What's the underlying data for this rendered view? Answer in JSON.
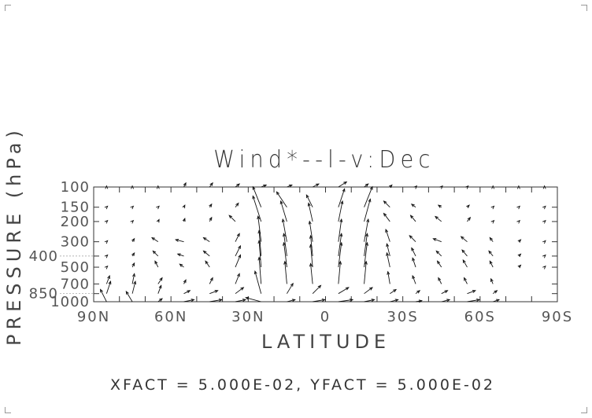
{
  "chart_data": {
    "type": "vector",
    "title": "Wind*--l-v:Dec",
    "xlabel": "LATITUDE",
    "ylabel": "PRESSURE (hPa)",
    "footer": "XFACT = 5.000E-02, YFACT = 5.000E-02",
    "x_axis": {
      "range": [
        90,
        -90
      ],
      "tick_labels": [
        "90N",
        "60N",
        "30N",
        "0",
        "30S",
        "60S",
        "90S"
      ],
      "tick_values": [
        90,
        60,
        30,
        0,
        -30,
        -60,
        -90
      ],
      "minor_step": 10
    },
    "y_axis": {
      "scale": "log",
      "range": [
        1000,
        100
      ],
      "reversed": true,
      "tick_labels": [
        "100",
        "150",
        "200",
        "300",
        "400",
        "500",
        "700",
        "850",
        "1000"
      ],
      "tick_values": [
        100,
        150,
        200,
        300,
        400,
        500,
        700,
        850,
        1000
      ]
    },
    "latitudes": [
      85,
      75,
      65,
      55,
      45,
      35,
      25,
      15,
      5,
      -5,
      -15,
      -25,
      -35,
      -45,
      -55,
      -65,
      -75,
      -85
    ],
    "levels": [
      100,
      150,
      200,
      300,
      400,
      500,
      700,
      850,
      1000
    ],
    "u": [
      [
        0,
        0,
        0,
        2,
        3,
        4,
        5,
        5,
        6,
        8,
        4,
        2,
        1,
        1,
        1,
        0,
        0,
        0
      ],
      [
        1,
        1,
        1,
        1,
        2,
        3,
        -8,
        -10,
        -6,
        6,
        8,
        -6,
        -4,
        -3,
        2,
        1,
        1,
        1
      ],
      [
        1,
        1,
        1,
        1,
        2,
        -6,
        -8,
        -6,
        -4,
        4,
        6,
        -6,
        -5,
        -6,
        3,
        1,
        1,
        1
      ],
      [
        1,
        2,
        -6,
        -8,
        -6,
        4,
        -3,
        -4,
        -3,
        3,
        4,
        -4,
        -6,
        -8,
        -6,
        -3,
        2,
        1
      ],
      [
        1,
        2,
        -5,
        -6,
        -6,
        5,
        -2,
        -3,
        -2,
        3,
        3,
        -3,
        -4,
        -5,
        -5,
        -4,
        2,
        1
      ],
      [
        1,
        2,
        -3,
        -4,
        -4,
        5,
        -2,
        -3,
        -2,
        3,
        3,
        -3,
        -3,
        -4,
        -4,
        -3,
        2,
        1
      ],
      [
        3,
        2,
        4,
        2,
        3,
        4,
        -2,
        -2,
        -2,
        2,
        2,
        -2,
        -3,
        -3,
        -3,
        -2,
        null,
        null
      ],
      [
        4,
        3,
        3,
        6,
        8,
        8,
        -6,
        6,
        8,
        10,
        8,
        6,
        4,
        6,
        8,
        4,
        null,
        null
      ],
      [
        -6,
        -6,
        4,
        10,
        12,
        10,
        -15,
        8,
        12,
        14,
        10,
        8,
        6,
        8,
        12,
        6,
        null,
        null
      ]
    ],
    "v": [
      [
        1,
        1,
        1,
        4,
        4,
        3,
        2,
        2,
        3,
        5,
        3,
        2,
        1,
        1,
        1,
        1,
        1,
        1
      ],
      [
        1,
        1,
        1,
        2,
        3,
        4,
        20,
        15,
        12,
        18,
        20,
        6,
        3,
        2,
        2,
        1,
        1,
        1
      ],
      [
        1,
        1,
        2,
        3,
        4,
        6,
        25,
        20,
        18,
        20,
        22,
        8,
        6,
        5,
        4,
        1,
        1,
        1
      ],
      [
        1,
        3,
        4,
        2,
        4,
        8,
        25,
        22,
        20,
        22,
        22,
        12,
        6,
        3,
        5,
        4,
        2,
        1
      ],
      [
        1,
        3,
        5,
        2,
        5,
        10,
        25,
        22,
        20,
        22,
        22,
        12,
        8,
        5,
        6,
        5,
        2,
        1
      ],
      [
        1,
        4,
        6,
        3,
        6,
        12,
        26,
        24,
        22,
        24,
        24,
        14,
        9,
        6,
        7,
        6,
        2,
        1
      ],
      [
        8,
        10,
        6,
        4,
        6,
        10,
        26,
        22,
        20,
        22,
        22,
        12,
        8,
        6,
        6,
        5,
        null,
        null
      ],
      [
        12,
        12,
        8,
        3,
        3,
        6,
        22,
        10,
        8,
        6,
        6,
        4,
        3,
        3,
        3,
        3,
        null,
        null
      ],
      [
        12,
        10,
        3,
        2,
        2,
        2,
        4,
        2,
        2,
        2,
        2,
        2,
        1,
        2,
        2,
        2,
        null,
        null
      ]
    ]
  }
}
